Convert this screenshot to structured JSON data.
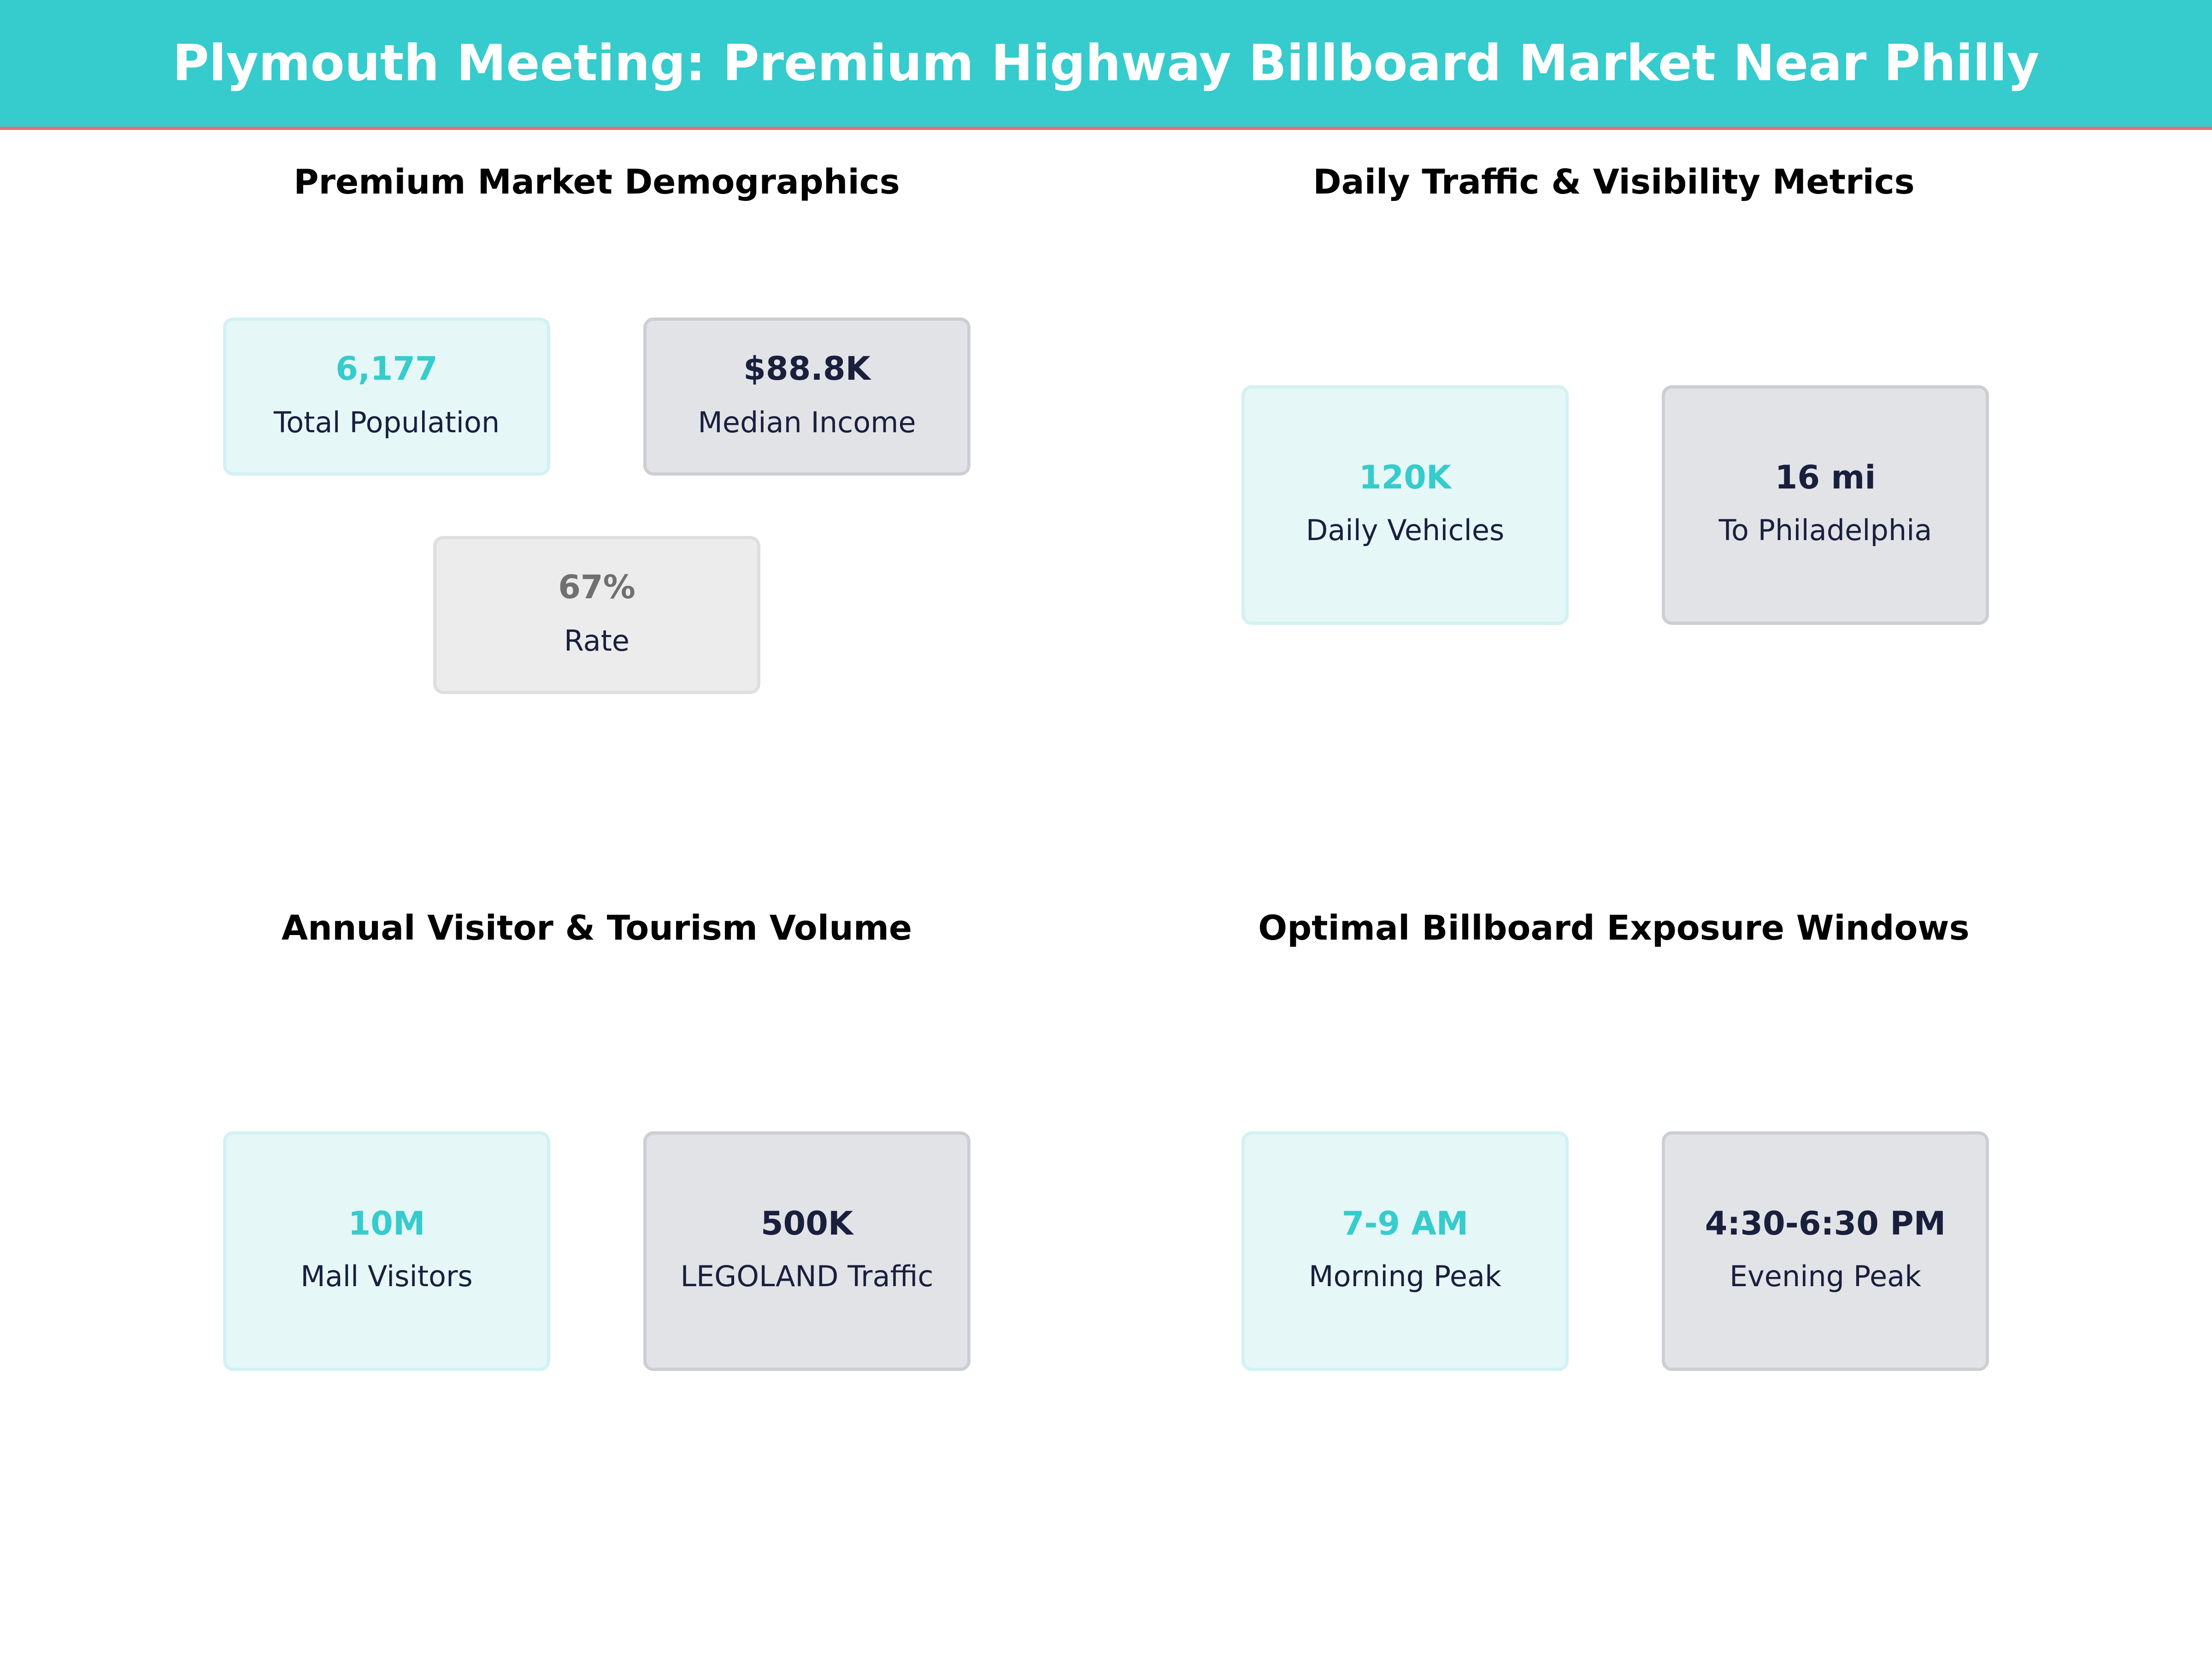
{
  "header": {
    "title": "Plymouth Meeting: Premium Highway Billboard Market Near Philly"
  },
  "colors": {
    "accent": "#36cbcc",
    "header_border": "#ec6a78",
    "dark_text": "#1a1f3d",
    "muted_value": "#707070"
  },
  "panels": {
    "demographics": {
      "title": "Premium Market Demographics",
      "cards": [
        {
          "value": "6,177",
          "label": "Total Population"
        },
        {
          "value": "$88.8K",
          "label": "Median Income"
        },
        {
          "value": "67%",
          "label": "Rate"
        }
      ]
    },
    "traffic": {
      "title": "Daily Traffic & Visibility Metrics",
      "cards": [
        {
          "value": "120K",
          "label": "Daily Vehicles"
        },
        {
          "value": "16 mi",
          "label": "To Philadelphia"
        }
      ]
    },
    "tourism": {
      "title": "Annual Visitor & Tourism Volume",
      "cards": [
        {
          "value": "10M",
          "label": "Mall Visitors"
        },
        {
          "value": "500K",
          "label": "LEGOLAND Traffic"
        }
      ]
    },
    "exposure": {
      "title": "Optimal Billboard Exposure Windows",
      "cards": [
        {
          "value": "7-9 AM",
          "label": "Morning Peak"
        },
        {
          "value": "4:30-6:30 PM",
          "label": "Evening Peak"
        }
      ]
    }
  }
}
